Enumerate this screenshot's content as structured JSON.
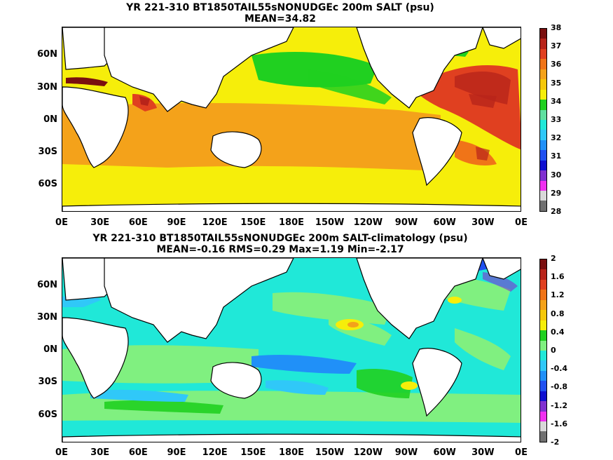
{
  "top": {
    "title": "YR 221-310 BT1850TAIL55sNONUDGEc 200m SALT (psu)",
    "subtitle": "MEAN=34.82",
    "colorbar": {
      "labels": [
        "38",
        "37",
        "36",
        "35",
        "34",
        "33",
        "32",
        "31",
        "30",
        "29",
        "28"
      ],
      "colors": [
        "#7a0f0f",
        "#b8241a",
        "#e04020",
        "#f07418",
        "#f4a21a",
        "#f6c80a",
        "#f6ee0a",
        "#20d020",
        "#60e0a0",
        "#20e8d8",
        "#30c8f8",
        "#2090f8",
        "#2050f0",
        "#1010d0",
        "#8030d0",
        "#f030f0",
        "#d8d8d8",
        "#707070"
      ]
    }
  },
  "bottom": {
    "title": "YR 221-310 BT1850TAIL55sNONUDGEc 200m SALT-climatology (psu)",
    "subtitle": "MEAN=-0.16   RMS=0.29   Max=1.19   Min=-2.17",
    "colorbar": {
      "labels": [
        "2",
        "1.6",
        "1.2",
        "0.8",
        "0.4",
        "0",
        "-0.4",
        "-0.8",
        "-1.2",
        "-1.6",
        "-2"
      ],
      "colors": [
        "#7a0f0f",
        "#b8241a",
        "#e04020",
        "#f07418",
        "#f4a21a",
        "#f6c80a",
        "#f6ee0a",
        "#20d020",
        "#80f080",
        "#20e8d8",
        "#30c8f8",
        "#2090f8",
        "#2050f0",
        "#1010d0",
        "#8030d0",
        "#f030f0",
        "#d8d8d8",
        "#707070"
      ]
    }
  },
  "lat_labels": [
    "60N",
    "30N",
    "0N",
    "30S",
    "60S"
  ],
  "lon_labels": [
    "0E",
    "30E",
    "60E",
    "90E",
    "120E",
    "150E",
    "180E",
    "150W",
    "120W",
    "90W",
    "60W",
    "30W",
    "0E"
  ]
}
